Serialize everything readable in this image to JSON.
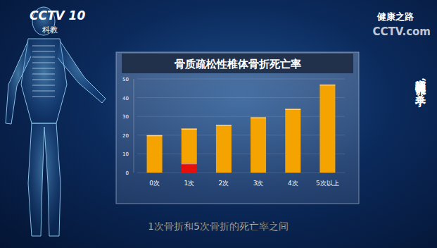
{
  "chart_data": {
    "type": "bar",
    "title": "骨质疏松性椎体骨折死亡率",
    "subtitle": "1次骨折和5次骨折的死亡率之间",
    "annotations": [
      "CCTV 10",
      "科教",
      "健康之路",
      "CCTV.com",
      "寂静的骨骼“杀手”"
    ],
    "categories": [
      "0次",
      "1次",
      "2次",
      "3次",
      "4次",
      "5次以上"
    ],
    "series": [
      {
        "color": "#e5100c",
        "values": [
          null,
          5,
          null,
          null,
          null,
          null
        ]
      },
      {
        "color": "#f5a300",
        "values": [
          20,
          18.5,
          25.5,
          29.5,
          34,
          47
        ]
      }
    ],
    "stacked": true,
    "ylim": [
      0,
      50
    ],
    "yticks": [
      0,
      10,
      20,
      30,
      40,
      50
    ],
    "grid": true
  }
}
